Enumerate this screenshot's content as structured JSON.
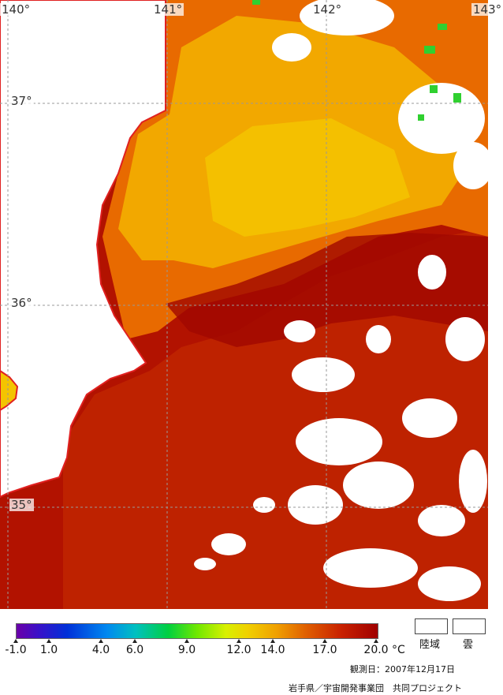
{
  "map": {
    "longitude_labels": [
      "140°",
      "141°",
      "142°",
      "143°"
    ],
    "latitude_labels": [
      "37°",
      "36°",
      "35°"
    ],
    "colors": {
      "land": "#ffffff",
      "cloud": "#ffffff",
      "coastline": "#e02020",
      "warm_water": "#b01000",
      "mid_water": "#e05000",
      "cool_water": "#f0a000",
      "coolest_water": "#f0c800",
      "cold_patch": "#30d030",
      "grid_line": "#999999"
    }
  },
  "legend": {
    "tick_labels": [
      "-1.0",
      "1.0",
      "4.0",
      "6.0",
      "9.0",
      "12.0",
      "14.0",
      "17.0",
      "20.0"
    ],
    "tick_values": [
      -1.0,
      1.0,
      4.0,
      6.0,
      9.0,
      12.0,
      14.0,
      17.0,
      20.0
    ],
    "unit": "°C",
    "land_label": "陸域",
    "cloud_label": "雲"
  },
  "observation_date": "観測日：2007年12月17日",
  "credit": "岩手県／宇宙開発事業団　共同プロジェクト"
}
